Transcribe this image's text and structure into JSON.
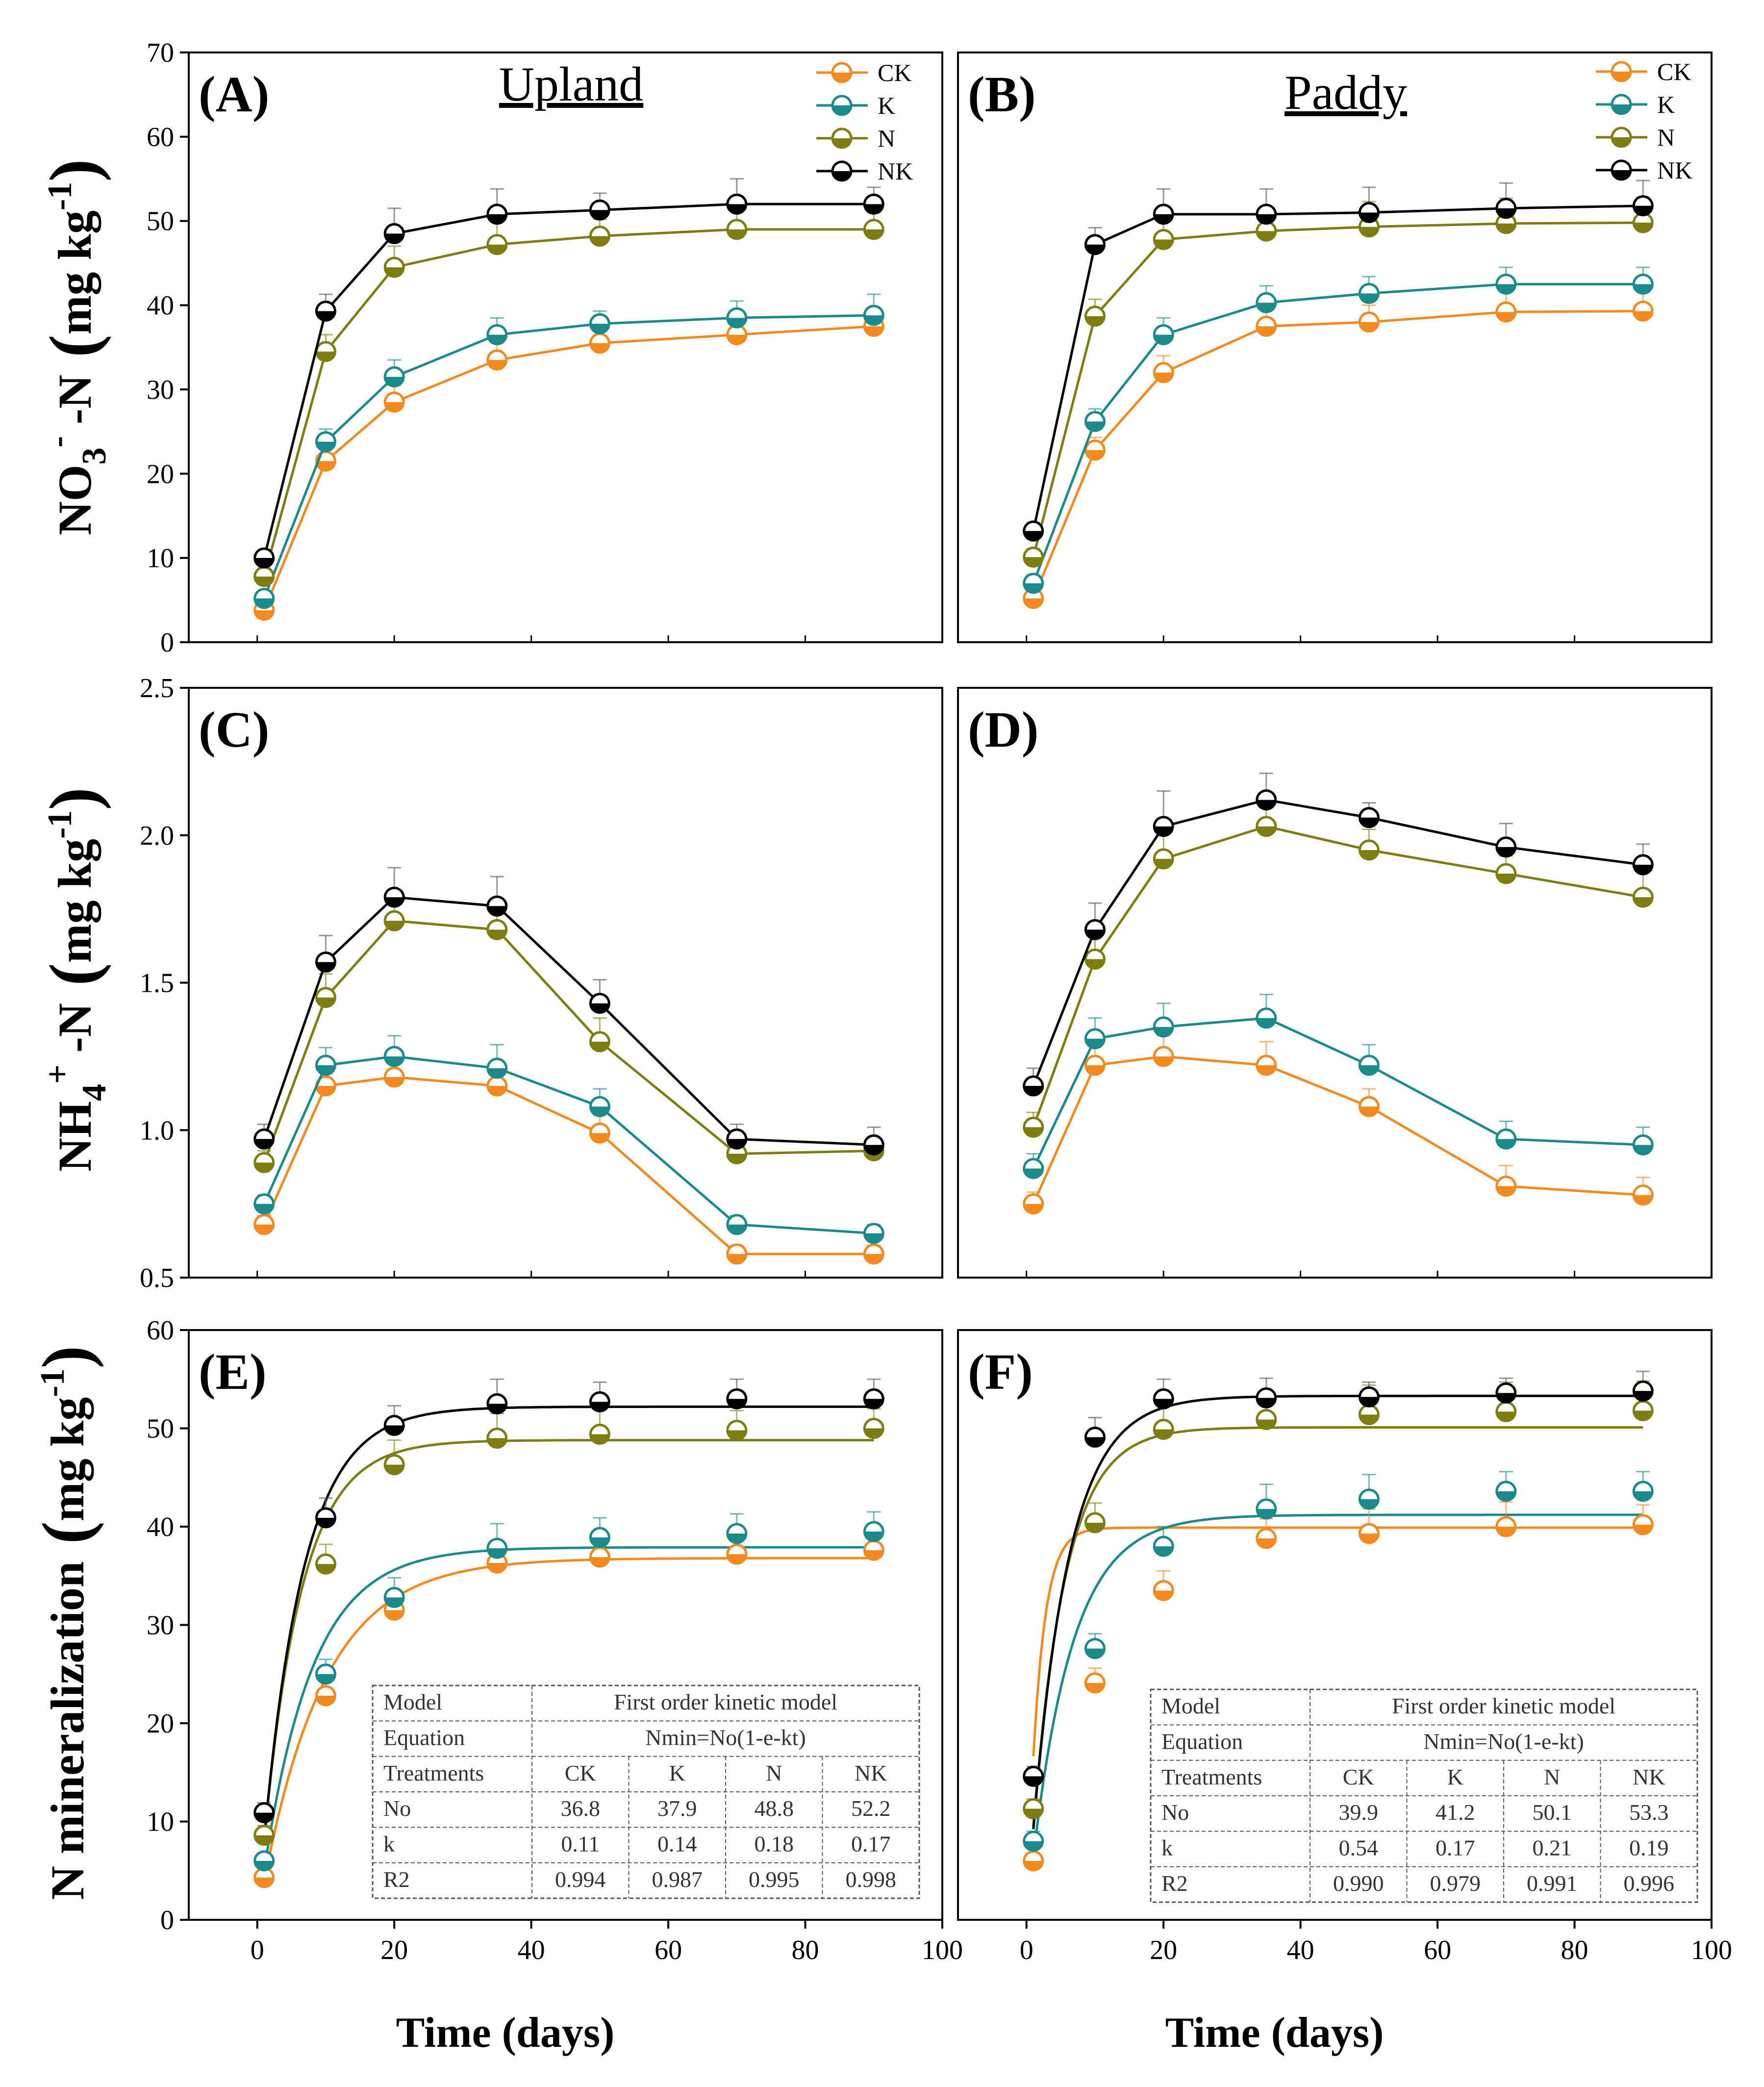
{
  "colors": {
    "CK": "#f28a1f",
    "K": "#1a8a8a",
    "N": "#7d7d12",
    "NK": "#000000"
  },
  "series_names": [
    "CK",
    "K",
    "N",
    "NK"
  ],
  "axis_title_x": "Time (days)",
  "chart_data": [
    {
      "panel": "(A)",
      "title": "Upland",
      "type": "line",
      "ylabel": "NO3- -N (mg kg-1)",
      "ylabel_parts": {
        "main": "NO",
        "sub": "3",
        "sup": "-",
        "tail": "-N",
        "unit_main": "mg kg",
        "unit_sup": "-1"
      },
      "xlim": [
        -10,
        100
      ],
      "ylim": [
        0,
        70
      ],
      "xticks": [
        "0",
        "20",
        "40",
        "60",
        "80",
        "100"
      ],
      "yticks": [
        "0",
        "10",
        "20",
        "30",
        "40",
        "50",
        "60",
        "70"
      ],
      "legend": [
        "CK",
        "K",
        "N",
        "NK"
      ],
      "x": [
        1,
        10,
        20,
        35,
        50,
        70,
        90
      ],
      "series": [
        {
          "name": "CK",
          "values": [
            3.8,
            21.5,
            28.5,
            33.5,
            35.5,
            36.5,
            37.5
          ],
          "err": [
            0.8,
            1.5,
            2,
            2,
            2,
            2,
            2
          ]
        },
        {
          "name": "K",
          "values": [
            5.2,
            23.8,
            31.5,
            36.5,
            37.8,
            38.5,
            38.8
          ],
          "err": [
            0.8,
            1.5,
            2,
            2,
            1.5,
            2,
            2.5
          ]
        },
        {
          "name": "N",
          "values": [
            7.8,
            34.5,
            44.5,
            47.2,
            48.2,
            49,
            49
          ],
          "err": [
            1,
            2,
            2.5,
            3,
            2,
            3,
            2
          ]
        },
        {
          "name": "NK",
          "values": [
            10,
            39.3,
            48.5,
            50.8,
            51.3,
            52,
            52
          ],
          "err": [
            1,
            2,
            3,
            3,
            2,
            3,
            2
          ]
        }
      ]
    },
    {
      "panel": "(B)",
      "title": "Paddy",
      "type": "line",
      "xlim": [
        -10,
        100
      ],
      "ylim": [
        0,
        70
      ],
      "xticks": [
        "0",
        "20",
        "40",
        "60",
        "80",
        "100"
      ],
      "legend": [
        "CK",
        "K",
        "N",
        "NK"
      ],
      "x": [
        1,
        10,
        20,
        35,
        50,
        70,
        90
      ],
      "series": [
        {
          "name": "CK",
          "values": [
            5.2,
            22.8,
            32,
            37.5,
            38,
            39.2,
            39.3
          ],
          "err": [
            0.8,
            1.5,
            2,
            2,
            2,
            2.5,
            2.5
          ]
        },
        {
          "name": "K",
          "values": [
            7,
            26.2,
            36.5,
            40.3,
            41.4,
            42.5,
            42.5
          ],
          "err": [
            1,
            1.5,
            2,
            2,
            2,
            2,
            2
          ]
        },
        {
          "name": "N",
          "values": [
            10.1,
            38.7,
            47.8,
            48.8,
            49.3,
            49.7,
            49.8
          ],
          "err": [
            1,
            2,
            2.5,
            2.5,
            3,
            3,
            3
          ]
        },
        {
          "name": "NK",
          "values": [
            13.2,
            47.2,
            50.8,
            50.8,
            51,
            51.5,
            51.8
          ],
          "err": [
            1,
            2,
            3,
            3,
            3,
            3,
            3
          ]
        }
      ]
    },
    {
      "panel": "(C)",
      "type": "line",
      "ylabel": "NH4+ -N (mg kg-1)",
      "ylabel_parts": {
        "main": "NH",
        "sub": "4",
        "sup": "+",
        "tail": "-N",
        "unit_main": "mg kg",
        "unit_sup": "-1"
      },
      "xlim": [
        -10,
        100
      ],
      "ylim": [
        0.5,
        2.5
      ],
      "xticks": [
        "0",
        "20",
        "40",
        "60",
        "80",
        "100"
      ],
      "yticks": [
        "0.5",
        "1.0",
        "1.5",
        "2.0",
        "2.5"
      ],
      "x": [
        1,
        10,
        20,
        35,
        50,
        70,
        90
      ],
      "series": [
        {
          "name": "CK",
          "values": [
            0.68,
            1.15,
            1.18,
            1.15,
            0.99,
            0.58,
            0.58
          ],
          "err": [
            0.03,
            0.06,
            0.06,
            0.08,
            0.06,
            0.03,
            0.03
          ]
        },
        {
          "name": "K",
          "values": [
            0.75,
            1.22,
            1.25,
            1.21,
            1.08,
            0.68,
            0.65
          ],
          "err": [
            0.03,
            0.06,
            0.07,
            0.08,
            0.06,
            0.03,
            0.03
          ]
        },
        {
          "name": "N",
          "values": [
            0.89,
            1.45,
            1.71,
            1.68,
            1.3,
            0.92,
            0.93
          ],
          "err": [
            0.04,
            0.08,
            0.1,
            0.1,
            0.08,
            0.04,
            0.04
          ]
        },
        {
          "name": "NK",
          "values": [
            0.97,
            1.57,
            1.79,
            1.76,
            1.43,
            0.97,
            0.95
          ],
          "err": [
            0.05,
            0.09,
            0.1,
            0.1,
            0.08,
            0.05,
            0.06
          ]
        }
      ]
    },
    {
      "panel": "(D)",
      "type": "line",
      "xlim": [
        -10,
        100
      ],
      "ylim": [
        0.5,
        2.5
      ],
      "xticks": [
        "0",
        "20",
        "40",
        "60",
        "80",
        "100"
      ],
      "x": [
        1,
        10,
        20,
        35,
        50,
        70,
        90
      ],
      "series": [
        {
          "name": "CK",
          "values": [
            0.75,
            1.22,
            1.25,
            1.22,
            1.08,
            0.81,
            0.78
          ],
          "err": [
            0.04,
            0.07,
            0.07,
            0.08,
            0.06,
            0.07,
            0.06
          ]
        },
        {
          "name": "K",
          "values": [
            0.87,
            1.31,
            1.35,
            1.38,
            1.22,
            0.97,
            0.95
          ],
          "err": [
            0.05,
            0.07,
            0.08,
            0.08,
            0.07,
            0.06,
            0.06
          ]
        },
        {
          "name": "N",
          "values": [
            1.01,
            1.58,
            1.92,
            2.03,
            1.95,
            1.87,
            1.79
          ],
          "err": [
            0.05,
            0.08,
            0.1,
            0.1,
            0.07,
            0.06,
            0.1
          ]
        },
        {
          "name": "NK",
          "values": [
            1.15,
            1.68,
            2.03,
            2.12,
            2.06,
            1.96,
            1.9
          ],
          "err": [
            0.06,
            0.09,
            0.12,
            0.09,
            0.05,
            0.08,
            0.07
          ]
        }
      ]
    },
    {
      "panel": "(E)",
      "type": "scatter",
      "ylabel": "N mineralization (mg kg-1)",
      "ylabel_parts": {
        "main": "N mineralization",
        "unit_main": "mg kg",
        "unit_sup": "-1"
      },
      "xlim": [
        -10,
        100
      ],
      "ylim": [
        0,
        60
      ],
      "xticks": [
        "0",
        "20",
        "40",
        "60",
        "80",
        "100"
      ],
      "yticks": [
        "0",
        "10",
        "20",
        "30",
        "40",
        "50",
        "60"
      ],
      "x": [
        1,
        10,
        20,
        35,
        50,
        70,
        90
      ],
      "series": [
        {
          "name": "CK",
          "values": [
            4.3,
            22.8,
            31.5,
            36.3,
            36.9,
            37.2,
            37.6
          ],
          "err": [
            0.8,
            1.5,
            2,
            1.5,
            2,
            2,
            2
          ]
        },
        {
          "name": "K",
          "values": [
            6,
            25,
            32.8,
            37.8,
            38.9,
            39.3,
            39.5
          ],
          "err": [
            0.8,
            1.5,
            2,
            2.5,
            2,
            2,
            2
          ]
        },
        {
          "name": "N",
          "values": [
            8.6,
            36.2,
            46.3,
            49,
            49.4,
            49.8,
            50
          ],
          "err": [
            1,
            2,
            2.5,
            2.5,
            3,
            2,
            2
          ]
        },
        {
          "name": "NK",
          "values": [
            10.9,
            40.9,
            50.3,
            52.5,
            52.7,
            53,
            53
          ],
          "err": [
            1,
            2,
            2,
            2.5,
            2,
            2,
            2
          ]
        }
      ],
      "fit": {
        "CK": {
          "N0": 36.8,
          "k": 0.11
        },
        "K": {
          "N0": 37.9,
          "k": 0.14
        },
        "N": {
          "N0": 48.8,
          "k": 0.18
        },
        "NK": {
          "N0": 52.2,
          "k": 0.17
        }
      },
      "table": {
        "model_label": "Model",
        "model_value": "First order kinetic model",
        "equation_label": "Equation",
        "equation_value": "Nmin=No(1-e-kt)",
        "treatments_label": "Treatments",
        "rows": [
          {
            "label": "No",
            "values": [
              "36.8",
              "37.9",
              "48.8",
              "52.2"
            ]
          },
          {
            "label": "k",
            "values": [
              "0.11",
              "0.14",
              "0.18",
              "0.17"
            ]
          },
          {
            "label": "R2",
            "values": [
              "0.994",
              "0.987",
              "0.995",
              "0.998"
            ]
          }
        ]
      }
    },
    {
      "panel": "(F)",
      "type": "scatter",
      "xlim": [
        -10,
        100
      ],
      "ylim": [
        0,
        60
      ],
      "xticks": [
        "0",
        "20",
        "40",
        "60",
        "80",
        "100"
      ],
      "x": [
        1,
        10,
        20,
        35,
        50,
        70,
        90
      ],
      "series": [
        {
          "name": "CK",
          "values": [
            6,
            24.1,
            33.5,
            38.8,
            39.3,
            40,
            40.2
          ],
          "err": [
            0.8,
            1.5,
            2,
            2,
            2.5,
            2.5,
            2
          ]
        },
        {
          "name": "K",
          "values": [
            8,
            27.6,
            38,
            41.8,
            42.8,
            43.6,
            43.6
          ],
          "err": [
            1,
            1.5,
            2,
            2.5,
            2.5,
            2,
            2
          ]
        },
        {
          "name": "N",
          "values": [
            11.3,
            40.4,
            49.9,
            50.9,
            51.4,
            51.7,
            51.8
          ],
          "err": [
            1,
            2,
            2.5,
            2.5,
            3,
            3,
            3
          ]
        },
        {
          "name": "NK",
          "values": [
            14.6,
            49.1,
            53,
            53.1,
            53.2,
            53.6,
            53.8
          ],
          "err": [
            1,
            2,
            2,
            2,
            1.5,
            1.5,
            2
          ]
        }
      ],
      "fit": {
        "CK": {
          "N0": 39.9,
          "k": 0.54
        },
        "K": {
          "N0": 41.2,
          "k": 0.17
        },
        "N": {
          "N0": 50.1,
          "k": 0.21
        },
        "NK": {
          "N0": 53.3,
          "k": 0.19
        }
      },
      "table": {
        "model_label": "Model",
        "model_value": "First order kinetic model",
        "equation_label": "Equation",
        "equation_value": "Nmin=No(1-e-kt)",
        "treatments_label": "Treatments",
        "rows": [
          {
            "label": "No",
            "values": [
              "39.9",
              "41.2",
              "50.1",
              "53.3"
            ]
          },
          {
            "label": "k",
            "values": [
              "0.54",
              "0.17",
              "0.21",
              "0.19"
            ]
          },
          {
            "label": "R2",
            "values": [
              "0.990",
              "0.979",
              "0.991",
              "0.996"
            ]
          }
        ]
      }
    }
  ]
}
